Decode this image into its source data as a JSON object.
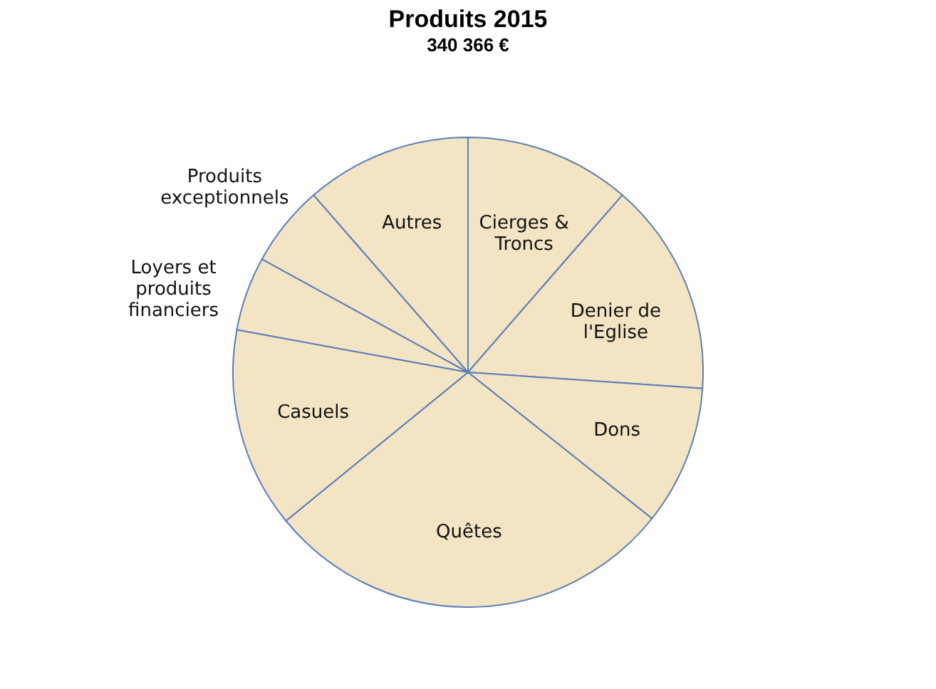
{
  "chart_data": {
    "type": "pie",
    "title": "Produits 2015",
    "subtitle": "340 366 €",
    "categories": [
      "Cierges & Troncs",
      "Denier de l'Eglise",
      "Dons",
      "Quêtes",
      "Casuels",
      "Loyers et produits financiers",
      "Produits exceptionnels",
      "Autres"
    ],
    "values": [
      11.4,
      14.7,
      9.6,
      28.4,
      13.8,
      5.1,
      5.6,
      11.4
    ],
    "colors": [
      "#f3e4c4",
      "#f3e4c4",
      "#f3e4c4",
      "#f3e4c4",
      "#f3e4c4",
      "#f3e4c4",
      "#f3e4c4",
      "#f3e4c4"
    ]
  }
}
